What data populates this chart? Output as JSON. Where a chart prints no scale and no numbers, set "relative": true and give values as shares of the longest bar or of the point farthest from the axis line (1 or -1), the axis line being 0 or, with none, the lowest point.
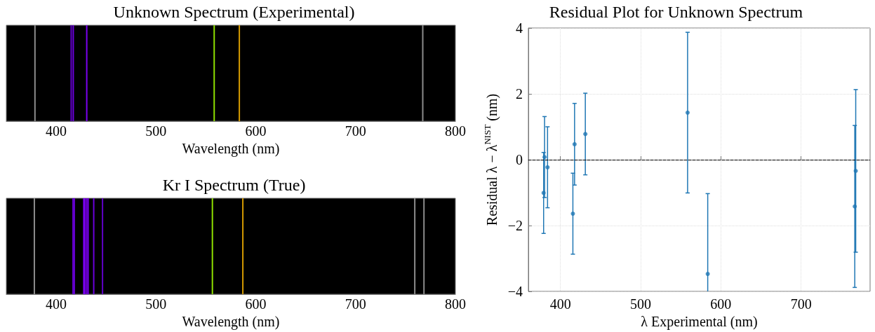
{
  "chart_data": [
    {
      "type": "bar",
      "title": "Unknown Spectrum (Experimental)",
      "xlabel": "Wavelength (nm)",
      "relative": true,
      "tick_labels": "x",
      "grid": false,
      "x": [
        378.7,
        415.0,
        417.1,
        430.6,
        558.3,
        583.5,
        767.3
      ],
      "values": [
        1,
        1,
        1,
        1,
        1,
        1,
        1
      ],
      "colors": [
        "#8c8c8c",
        "#6000c8",
        "#6a00dc",
        "#7a00f0",
        "#8fe000",
        "#d49a00",
        "#8c8c8c"
      ],
      "xlim": [
        350,
        800
      ],
      "xticks": [
        400,
        500,
        600,
        700,
        800
      ]
    },
    {
      "type": "bar",
      "title": "Kr I Spectrum (True)",
      "xlabel": "Wavelength (nm)",
      "relative": true,
      "tick_labels": "x",
      "grid": false,
      "x": [
        378.1,
        416.8,
        418.2,
        427.6,
        428.8,
        430.6,
        432.0,
        437.6,
        446.4,
        556.5,
        587.0,
        759.3,
        768.5
      ],
      "values": [
        1,
        1,
        1,
        1,
        1,
        1,
        1,
        1,
        1,
        1,
        1,
        1,
        1
      ],
      "colors": [
        "#8c8c8c",
        "#6000c8",
        "#6000c8",
        "#7a00f0",
        "#7a00f0",
        "#7a00f0",
        "#7000e0",
        "#6a00dc",
        "#6000c8",
        "#8fe000",
        "#d49a00",
        "#8c8c8c",
        "#8c8c8c"
      ],
      "xlim": [
        350,
        800
      ],
      "xticks": [
        400,
        500,
        600,
        700,
        800
      ]
    },
    {
      "type": "scatter",
      "title": "Residual Plot for Unknown Spectrum",
      "xlabel": "λ Experimental (nm)",
      "ylabel": "Residual λ − λ$^{NIST}$ (nm)",
      "grid": true,
      "marker": "circle",
      "x": [
        379.0,
        380.2,
        383.9,
        415.5,
        417.6,
        431.0,
        558.5,
        583.6,
        766.9,
        768.1
      ],
      "series": [
        {
          "color": "#1f77b4",
          "values": [
            -1.01,
            0.08,
            -0.23,
            -1.64,
            0.47,
            0.78,
            1.43,
            -3.47,
            -1.42,
            -0.34
          ],
          "errors": [
            1.23,
            1.23,
            1.23,
            1.23,
            1.24,
            1.24,
            2.44,
            2.44,
            2.46,
            2.47
          ]
        }
      ],
      "xlim": [
        360,
        786
      ],
      "xticks": [
        400,
        500,
        600,
        700
      ],
      "ylim": [
        -4,
        4
      ],
      "yticks": [
        -4,
        -2,
        0,
        2,
        4
      ],
      "ref_lines": [
        {
          "axis": "y",
          "value": 0,
          "line_style": "dashed",
          "color": "#000000"
        }
      ]
    }
  ]
}
